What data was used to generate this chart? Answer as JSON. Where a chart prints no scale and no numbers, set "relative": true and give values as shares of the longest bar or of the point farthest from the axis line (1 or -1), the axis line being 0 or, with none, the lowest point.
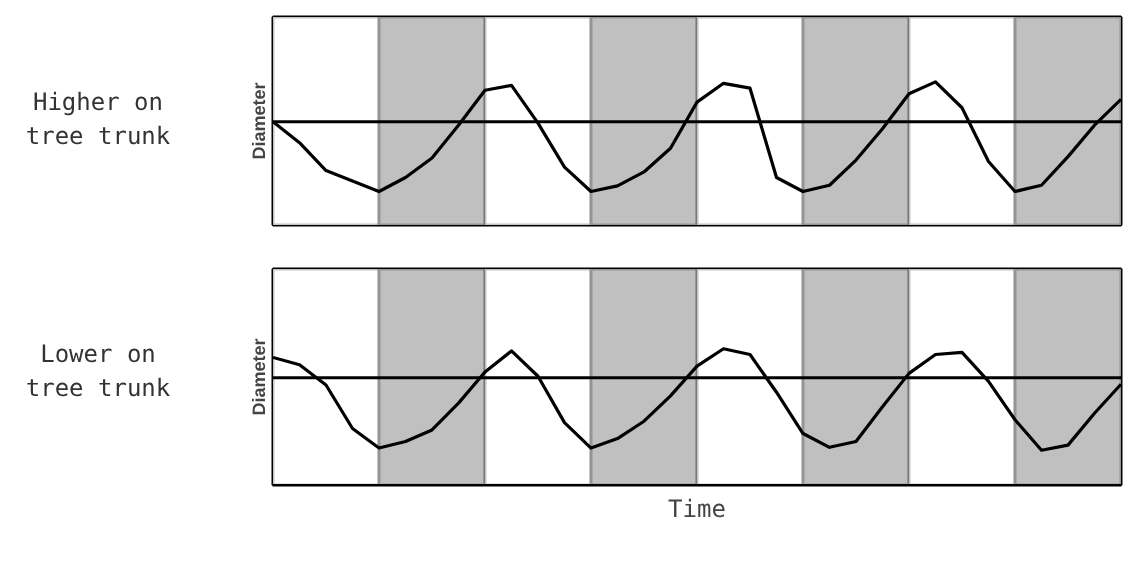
{
  "chart_data": [
    {
      "type": "line",
      "title": "Higher on tree trunk",
      "ylabel": "Diameter",
      "relative": true,
      "tick_labels": false,
      "categories": [
        null,
        null,
        null,
        null,
        null,
        null,
        null,
        null,
        null,
        null,
        null,
        null,
        null,
        null,
        null,
        null,
        null,
        null,
        null,
        null,
        null,
        null,
        null,
        null,
        null,
        null,
        null,
        null,
        null,
        null,
        null,
        null,
        null
      ],
      "series": [
        {
          "color": "#000000",
          "values": [
            0,
            -0.3,
            -0.7,
            -0.85,
            -1.0,
            -0.8,
            -0.52,
            -0.05,
            0.45,
            0.52,
            -0.02,
            -0.65,
            -1.0,
            -0.92,
            -0.72,
            -0.38,
            0.28,
            0.55,
            0.48,
            -0.8,
            -1.0,
            -0.91,
            -0.55,
            -0.1,
            0.4,
            0.57,
            0.2,
            -0.57,
            -1.0,
            -0.91,
            -0.5,
            -0.05,
            0.32
          ]
        }
      ]
    },
    {
      "type": "line",
      "title": "Lower on tree trunk",
      "ylabel": "Diameter",
      "xlabel": "Time",
      "relative": true,
      "tick_labels": false,
      "categories": [
        null,
        null,
        null,
        null,
        null,
        null,
        null,
        null,
        null,
        null,
        null,
        null,
        null,
        null,
        null,
        null,
        null,
        null,
        null,
        null,
        null,
        null,
        null,
        null,
        null,
        null,
        null,
        null,
        null,
        null,
        null,
        null,
        null
      ],
      "series": [
        {
          "color": "#000000",
          "values": [
            0.28,
            0.18,
            -0.1,
            -0.7,
            -0.97,
            -0.88,
            -0.72,
            -0.35,
            0.08,
            0.37,
            0.02,
            -0.62,
            -0.97,
            -0.84,
            -0.6,
            -0.25,
            0.16,
            0.4,
            0.32,
            -0.2,
            -0.77,
            -0.96,
            -0.88,
            -0.4,
            0.06,
            0.32,
            0.35,
            -0.05,
            -0.58,
            -1.0,
            -0.93,
            -0.49,
            -0.09
          ]
        }
      ]
    }
  ]
}
